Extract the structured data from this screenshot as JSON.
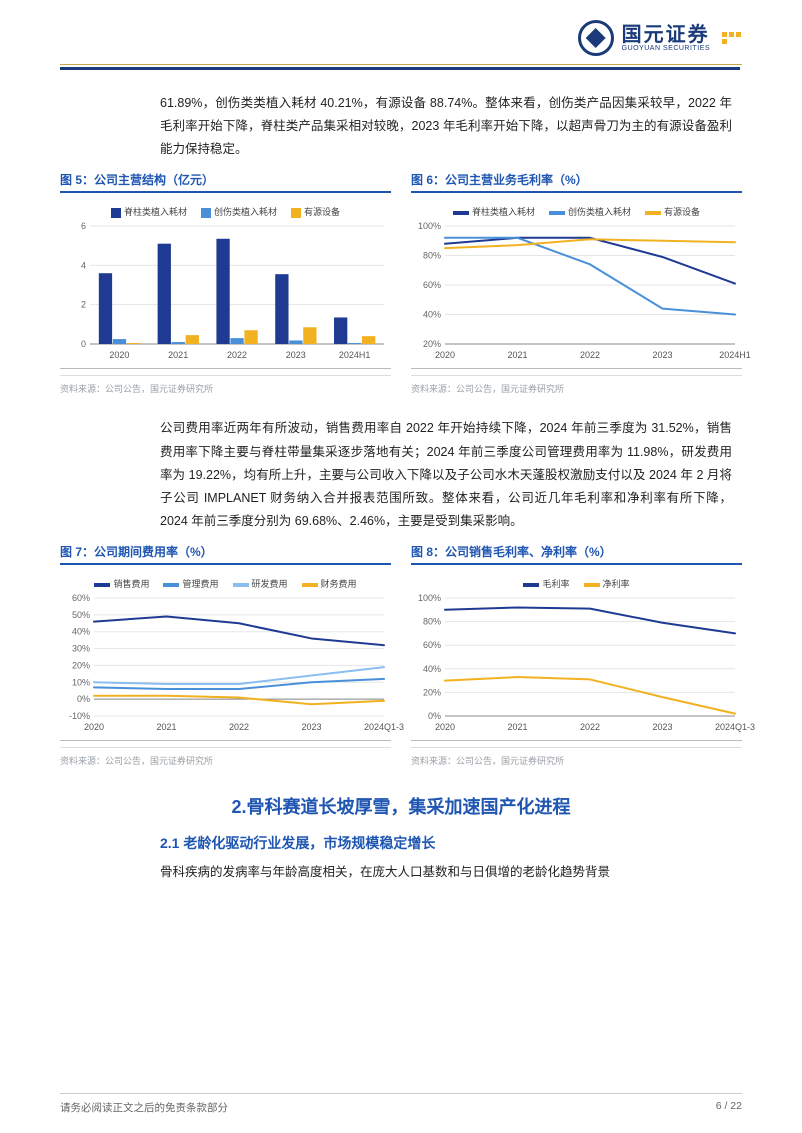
{
  "logo": {
    "cn": "国元证券",
    "en": "GUOYUAN SECURITIES"
  },
  "para1": "61.89%，创伤类类植入耗材 40.21%，有源设备 88.74%。整体来看，创伤类产品因集采较早，2022 年毛利率开始下降，脊柱类产品集采相对较晚，2023 年毛利率开始下降，以超声骨刀为主的有源设备盈利能力保持稳定。",
  "chart5": {
    "title": "图 5：公司主营结构（亿元）",
    "type": "bar",
    "categories": [
      "2020",
      "2021",
      "2022",
      "2023",
      "2024H1"
    ],
    "series": [
      {
        "name": "脊柱类植入耗材",
        "color": "#1f3a93",
        "values": [
          3.6,
          5.1,
          5.35,
          3.55,
          1.35
        ]
      },
      {
        "name": "创伤类植入耗材",
        "color": "#4a90d9",
        "values": [
          0.25,
          0.1,
          0.3,
          0.18,
          0.05
        ]
      },
      {
        "name": "有源设备",
        "color": "#f2b120",
        "values": [
          0.05,
          0.45,
          0.7,
          0.85,
          0.4
        ]
      }
    ],
    "ylim": [
      0,
      6
    ],
    "ytick_step": 2,
    "background_color": "#ffffff",
    "grid_color": "#e5e5e5",
    "label_fontsize": 9
  },
  "chart6": {
    "title": "图 6：公司主营业务毛利率（%）",
    "type": "line",
    "categories": [
      "2020",
      "2021",
      "2022",
      "2023",
      "2024H1"
    ],
    "series": [
      {
        "name": "脊柱类植入耗材",
        "color": "#1f3a93",
        "values": [
          88,
          92,
          92,
          79,
          61
        ]
      },
      {
        "name": "创伤类植入耗材",
        "color": "#4a90d9",
        "values": [
          92,
          92,
          74,
          44,
          40
        ]
      },
      {
        "name": "有源设备",
        "color": "#f2b120",
        "values": [
          85,
          87,
          91,
          90,
          89
        ]
      }
    ],
    "ylim": [
      20,
      100
    ],
    "ytick_step": 20,
    "line_width": 2,
    "background_color": "#ffffff",
    "grid_color": "#e5e5e5",
    "label_fontsize": 9
  },
  "para2": "公司费用率近两年有所波动，销售费用率自 2022 年开始持续下降，2024 年前三季度为 31.52%，销售费用率下降主要与脊柱带量集采逐步落地有关；2024 年前三季度公司管理费用率为 11.98%，研发费用率为 19.22%，均有所上升，主要与公司收入下降以及子公司水木天蓬股权激励支付以及 2024 年 2 月将子公司 IMPLANET 财务纳入合并报表范围所致。整体来看，公司近几年毛利率和净利率有所下降，2024 年前三季度分别为 69.68%、2.46%，主要是受到集采影响。",
  "chart7": {
    "title": "图 7：公司期间费用率（%）",
    "type": "line",
    "categories": [
      "2020",
      "2021",
      "2022",
      "2023",
      "2024Q1-3"
    ],
    "series": [
      {
        "name": "销售费用",
        "color": "#1f3a93",
        "values": [
          46,
          49,
          45,
          36,
          32
        ]
      },
      {
        "name": "管理费用",
        "color": "#4a90d9",
        "values": [
          7,
          6,
          6,
          10,
          12
        ]
      },
      {
        "name": "研发费用",
        "color": "#8bbef0",
        "values": [
          10,
          9,
          9,
          14,
          19
        ]
      },
      {
        "name": "财务费用",
        "color": "#f2b120",
        "values": [
          2,
          2,
          1,
          -3,
          -1
        ]
      }
    ],
    "ylim": [
      -10,
      60
    ],
    "ytick_step": 10,
    "line_width": 2,
    "background_color": "#ffffff",
    "grid_color": "#e5e5e5",
    "label_fontsize": 9
  },
  "chart8": {
    "title": "图 8：公司销售毛利率、净利率（%）",
    "type": "line",
    "categories": [
      "2020",
      "2021",
      "2022",
      "2023",
      "2024Q1-3"
    ],
    "series": [
      {
        "name": "毛利率",
        "color": "#1f3a93",
        "values": [
          90,
          92,
          91,
          79,
          70
        ]
      },
      {
        "name": "净利率",
        "color": "#f2b120",
        "values": [
          30,
          33,
          31,
          16,
          2
        ]
      }
    ],
    "ylim": [
      0,
      100
    ],
    "ytick_step": 20,
    "line_width": 2,
    "background_color": "#ffffff",
    "grid_color": "#e5e5e5",
    "label_fontsize": 9
  },
  "source": "资料来源：公司公告，国元证券研究所",
  "section2": "2.骨科赛道长坡厚雪，集采加速国产化进程",
  "section2_1": "2.1 老龄化驱动行业发展，市场规模稳定增长",
  "para3": "骨科疾病的发病率与年龄高度相关，在庞大人口基数和与日俱增的老龄化趋势背景",
  "footer_left": "请务必阅读正文之后的免责条款部分",
  "footer_right": "6 / 22"
}
